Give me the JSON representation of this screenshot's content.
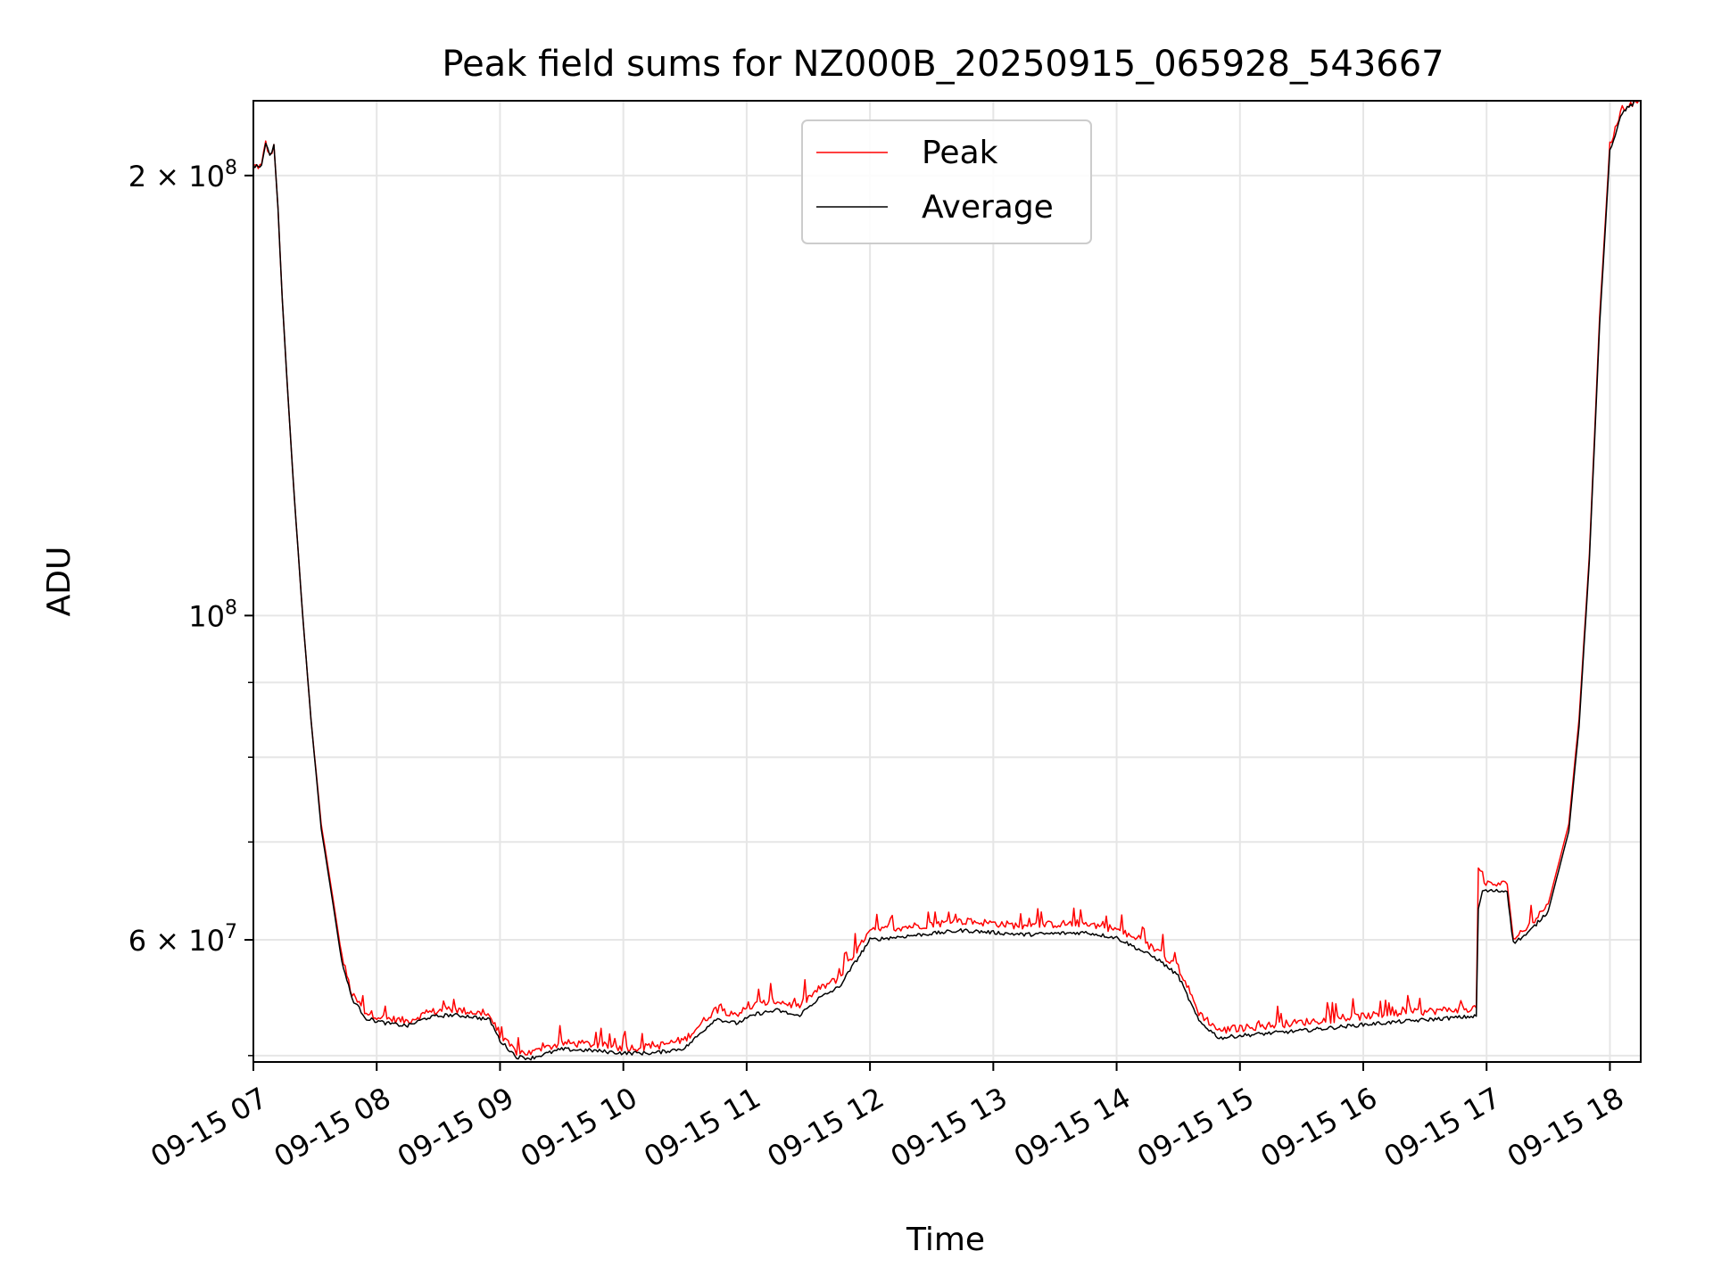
{
  "chart_data": {
    "type": "line",
    "title": "Peak field sums for NZ000B_20250915_065928_543667",
    "xlabel": "Time",
    "ylabel": "ADU",
    "yscale": "log",
    "grid": true,
    "legend_position": "top-center",
    "xlim": [
      "2025-09-15 07:00",
      "2025-09-15 18:15"
    ],
    "ylim": [
      49500000,
      225000000
    ],
    "x_ticks": [
      "09-15 07",
      "09-15 08",
      "09-15 09",
      "09-15 10",
      "09-15 11",
      "09-15 12",
      "09-15 13",
      "09-15 14",
      "09-15 15",
      "09-15 16",
      "09-15 17",
      "09-15 18"
    ],
    "y_ticks": [
      {
        "value": 200000000,
        "mantissa": "2",
        "exponent": "8"
      },
      {
        "value": 100000000,
        "mantissa": "",
        "exponent": "8"
      },
      {
        "value": 60000000,
        "mantissa": "6",
        "exponent": "7"
      }
    ],
    "y_minor_ticks": [
      50000000,
      70000000,
      80000000,
      90000000
    ],
    "series": [
      {
        "name": "Peak",
        "color": "#ff0000",
        "points": [
          [
            "2025-09-15 07:00",
            203000000
          ],
          [
            "2025-09-15 07:04",
            203000000
          ],
          [
            "2025-09-15 07:06",
            211000000
          ],
          [
            "2025-09-15 07:08",
            206000000
          ],
          [
            "2025-09-15 07:10",
            210000000
          ],
          [
            "2025-09-15 07:12",
            190000000
          ],
          [
            "2025-09-15 07:14",
            165000000
          ],
          [
            "2025-09-15 07:17",
            140000000
          ],
          [
            "2025-09-15 07:20",
            120000000
          ],
          [
            "2025-09-15 07:24",
            100000000
          ],
          [
            "2025-09-15 07:28",
            85000000
          ],
          [
            "2025-09-15 07:33",
            72000000
          ],
          [
            "2025-09-15 07:38",
            65000000
          ],
          [
            "2025-09-15 07:43",
            58500000
          ],
          [
            "2025-09-15 07:48",
            55000000
          ],
          [
            "2025-09-15 07:55",
            53500000
          ],
          [
            "2025-09-15 08:05",
            53000000
          ],
          [
            "2025-09-15 08:15",
            52800000
          ],
          [
            "2025-09-15 08:25",
            53500000
          ],
          [
            "2025-09-15 08:35",
            53800000
          ],
          [
            "2025-09-15 08:45",
            53600000
          ],
          [
            "2025-09-15 08:55",
            53300000
          ],
          [
            "2025-09-15 09:00",
            51500000
          ],
          [
            "2025-09-15 09:08",
            50300000
          ],
          [
            "2025-09-15 09:15",
            50200000
          ],
          [
            "2025-09-15 09:30",
            51000000
          ],
          [
            "2025-09-15 09:45",
            50900000
          ],
          [
            "2025-09-15 10:00",
            50600000
          ],
          [
            "2025-09-15 10:15",
            50700000
          ],
          [
            "2025-09-15 10:30",
            51300000
          ],
          [
            "2025-09-15 10:45",
            53800000
          ],
          [
            "2025-09-15 10:55",
            53400000
          ],
          [
            "2025-09-15 11:05",
            54200000
          ],
          [
            "2025-09-15 11:15",
            54500000
          ],
          [
            "2025-09-15 11:25",
            54000000
          ],
          [
            "2025-09-15 11:35",
            55500000
          ],
          [
            "2025-09-15 11:45",
            56500000
          ],
          [
            "2025-09-15 11:52",
            58500000
          ],
          [
            "2025-09-15 12:00",
            60800000
          ],
          [
            "2025-09-15 12:15",
            61200000
          ],
          [
            "2025-09-15 12:30",
            61500000
          ],
          [
            "2025-09-15 12:45",
            61800000
          ],
          [
            "2025-09-15 13:00",
            61600000
          ],
          [
            "2025-09-15 13:15",
            61300000
          ],
          [
            "2025-09-15 13:30",
            61500000
          ],
          [
            "2025-09-15 13:45",
            61600000
          ],
          [
            "2025-09-15 14:00",
            61000000
          ],
          [
            "2025-09-15 14:10",
            60000000
          ],
          [
            "2025-09-15 14:20",
            59000000
          ],
          [
            "2025-09-15 14:30",
            57500000
          ],
          [
            "2025-09-15 14:35",
            55500000
          ],
          [
            "2025-09-15 14:40",
            53500000
          ],
          [
            "2025-09-15 14:50",
            52000000
          ],
          [
            "2025-09-15 15:00",
            52200000
          ],
          [
            "2025-09-15 15:30",
            52700000
          ],
          [
            "2025-09-15 16:00",
            53200000
          ],
          [
            "2025-09-15 16:30",
            53600000
          ],
          [
            "2025-09-15 16:55",
            53900000
          ],
          [
            "2025-09-15 16:56",
            67500000
          ],
          [
            "2025-09-15 16:58",
            65500000
          ],
          [
            "2025-09-15 17:10",
            65500000
          ],
          [
            "2025-09-15 17:13",
            60200000
          ],
          [
            "2025-09-15 17:20",
            61200000
          ],
          [
            "2025-09-15 17:30",
            63500000
          ],
          [
            "2025-09-15 17:40",
            72000000
          ],
          [
            "2025-09-15 17:45",
            85000000
          ],
          [
            "2025-09-15 17:50",
            110000000
          ],
          [
            "2025-09-15 17:55",
            160000000
          ],
          [
            "2025-09-15 18:00",
            210000000
          ],
          [
            "2025-09-15 18:06",
            222000000
          ],
          [
            "2025-09-15 18:15",
            226000000
          ]
        ]
      },
      {
        "name": "Average",
        "color": "#000000",
        "points": [
          [
            "2025-09-15 07:00",
            203000000
          ],
          [
            "2025-09-15 07:04",
            203000000
          ],
          [
            "2025-09-15 07:06",
            211000000
          ],
          [
            "2025-09-15 07:08",
            206000000
          ],
          [
            "2025-09-15 07:10",
            210000000
          ],
          [
            "2025-09-15 07:12",
            190000000
          ],
          [
            "2025-09-15 07:14",
            165000000
          ],
          [
            "2025-09-15 07:17",
            140000000
          ],
          [
            "2025-09-15 07:20",
            120000000
          ],
          [
            "2025-09-15 07:24",
            100000000
          ],
          [
            "2025-09-15 07:28",
            85000000
          ],
          [
            "2025-09-15 07:33",
            71500000
          ],
          [
            "2025-09-15 07:38",
            64500000
          ],
          [
            "2025-09-15 07:43",
            58000000
          ],
          [
            "2025-09-15 07:48",
            54700000
          ],
          [
            "2025-09-15 07:55",
            53000000
          ],
          [
            "2025-09-15 08:05",
            52600000
          ],
          [
            "2025-09-15 08:15",
            52400000
          ],
          [
            "2025-09-15 08:25",
            53100000
          ],
          [
            "2025-09-15 08:35",
            53300000
          ],
          [
            "2025-09-15 08:45",
            53200000
          ],
          [
            "2025-09-15 08:55",
            52900000
          ],
          [
            "2025-09-15 09:00",
            51200000
          ],
          [
            "2025-09-15 09:08",
            49900000
          ],
          [
            "2025-09-15 09:15",
            49800000
          ],
          [
            "2025-09-15 09:30",
            50500000
          ],
          [
            "2025-09-15 09:45",
            50400000
          ],
          [
            "2025-09-15 10:00",
            50200000
          ],
          [
            "2025-09-15 10:15",
            50200000
          ],
          [
            "2025-09-15 10:30",
            50600000
          ],
          [
            "2025-09-15 10:45",
            53000000
          ],
          [
            "2025-09-15 10:55",
            52600000
          ],
          [
            "2025-09-15 11:05",
            53400000
          ],
          [
            "2025-09-15 11:15",
            53700000
          ],
          [
            "2025-09-15 11:25",
            53200000
          ],
          [
            "2025-09-15 11:35",
            54700000
          ],
          [
            "2025-09-15 11:45",
            55700000
          ],
          [
            "2025-09-15 11:52",
            57700000
          ],
          [
            "2025-09-15 12:00",
            60000000
          ],
          [
            "2025-09-15 12:15",
            60300000
          ],
          [
            "2025-09-15 12:30",
            60600000
          ],
          [
            "2025-09-15 12:45",
            60900000
          ],
          [
            "2025-09-15 13:00",
            60700000
          ],
          [
            "2025-09-15 13:15",
            60500000
          ],
          [
            "2025-09-15 13:30",
            60600000
          ],
          [
            "2025-09-15 13:45",
            60700000
          ],
          [
            "2025-09-15 14:00",
            60200000
          ],
          [
            "2025-09-15 14:10",
            59200000
          ],
          [
            "2025-09-15 14:20",
            58200000
          ],
          [
            "2025-09-15 14:30",
            56700000
          ],
          [
            "2025-09-15 14:35",
            54700000
          ],
          [
            "2025-09-15 14:40",
            52800000
          ],
          [
            "2025-09-15 14:50",
            51400000
          ],
          [
            "2025-09-15 15:00",
            51600000
          ],
          [
            "2025-09-15 15:30",
            52000000
          ],
          [
            "2025-09-15 16:00",
            52500000
          ],
          [
            "2025-09-15 16:30",
            52900000
          ],
          [
            "2025-09-15 16:55",
            53200000
          ],
          [
            "2025-09-15 16:56",
            63000000
          ],
          [
            "2025-09-15 16:58",
            64800000
          ],
          [
            "2025-09-15 17:10",
            64800000
          ],
          [
            "2025-09-15 17:13",
            59700000
          ],
          [
            "2025-09-15 17:20",
            60600000
          ],
          [
            "2025-09-15 17:30",
            62800000
          ],
          [
            "2025-09-15 17:40",
            71200000
          ],
          [
            "2025-09-15 17:45",
            84000000
          ],
          [
            "2025-09-15 17:50",
            109000000
          ],
          [
            "2025-09-15 17:55",
            158000000
          ],
          [
            "2025-09-15 18:00",
            208000000
          ],
          [
            "2025-09-15 18:06",
            221000000
          ],
          [
            "2025-09-15 18:15",
            226000000
          ]
        ]
      }
    ]
  }
}
